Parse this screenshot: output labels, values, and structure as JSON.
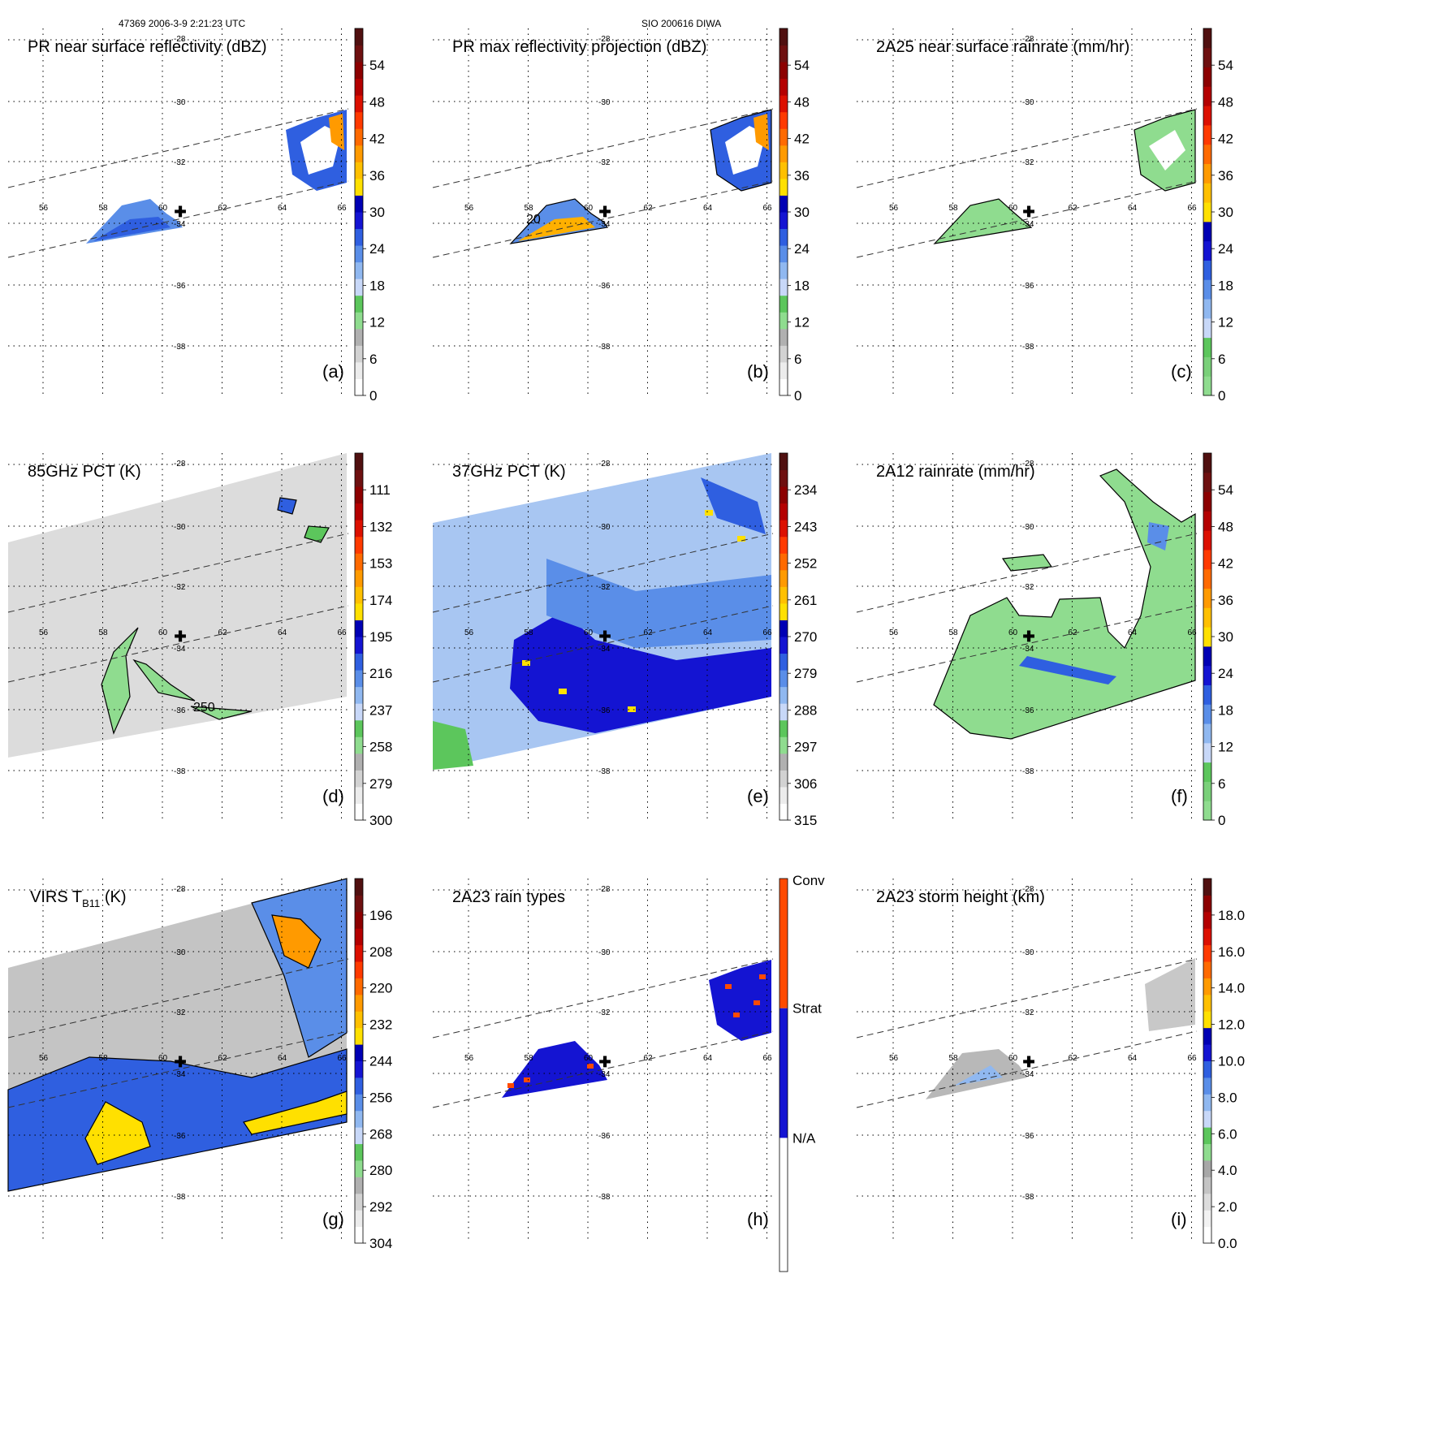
{
  "header": {
    "orbit_time": "47369 2006-3-9 2:21:23 UTC",
    "storm": "SIO 200616 DIWA"
  },
  "grid": {
    "lon_labels": [
      "56",
      "58",
      "60",
      "62",
      "64",
      "66"
    ],
    "lat_labels": [
      "-28",
      "-30",
      "-32",
      "-34",
      "-36",
      "-38"
    ]
  },
  "marker": "✚",
  "chart_data": [
    {
      "type": "heatmap",
      "panel": "(a)",
      "title": "PR near surface reflectivity (dBZ)",
      "colorbar": {
        "ticks": [
          "0",
          "6",
          "12",
          "18",
          "24",
          "30",
          "36",
          "42",
          "48",
          "54"
        ]
      },
      "contour_labels": []
    },
    {
      "type": "heatmap",
      "panel": "(b)",
      "title": "PR max reflectivity projection (dBZ)",
      "colorbar": {
        "ticks": [
          "0",
          "6",
          "12",
          "18",
          "24",
          "30",
          "36",
          "42",
          "48",
          "54"
        ]
      },
      "contour_labels": [
        "20"
      ]
    },
    {
      "type": "heatmap",
      "panel": "(c)",
      "title": "2A25 near surface rainrate (mm/hr)",
      "colorbar": {
        "ticks": [
          "0",
          "6",
          "12",
          "18",
          "24",
          "30",
          "36",
          "42",
          "48",
          "54"
        ]
      },
      "contour_labels": []
    },
    {
      "type": "heatmap",
      "panel": "(d)",
      "title": "85GHz PCT (K)",
      "colorbar": {
        "ticks": [
          "300",
          "279",
          "258",
          "237",
          "216",
          "195",
          "174",
          "153",
          "132",
          "111"
        ]
      },
      "contour_labels": [
        "250"
      ]
    },
    {
      "type": "heatmap",
      "panel": "(e)",
      "title": "37GHz PCT (K)",
      "colorbar": {
        "ticks": [
          "315",
          "306",
          "297",
          "288",
          "279",
          "270",
          "261",
          "252",
          "243",
          "234"
        ]
      },
      "contour_labels": []
    },
    {
      "type": "heatmap",
      "panel": "(f)",
      "title": "2A12 rainrate (mm/hr)",
      "colorbar": {
        "ticks": [
          "0",
          "6",
          "12",
          "18",
          "24",
          "30",
          "36",
          "42",
          "48",
          "54"
        ]
      },
      "contour_labels": []
    },
    {
      "type": "heatmap",
      "panel": "(g)",
      "title": "VIRS T",
      "title_sub": "B11",
      "title_tail": " (K)",
      "colorbar": {
        "ticks": [
          "304",
          "292",
          "280",
          "268",
          "256",
          "244",
          "232",
          "220",
          "208",
          "196"
        ]
      },
      "contour_labels": []
    },
    {
      "type": "heatmap",
      "panel": "(h)",
      "title": "2A23 rain types",
      "colorbar": {
        "categories": [
          "N/A",
          "Strat",
          "Conv"
        ]
      },
      "contour_labels": []
    },
    {
      "type": "heatmap",
      "panel": "(i)",
      "title": "2A23 storm height (km)",
      "colorbar": {
        "ticks": [
          "0.0",
          "2.0",
          "4.0",
          "6.0",
          "8.0",
          "10.0",
          "12.0",
          "14.0",
          "16.0",
          "18.0"
        ]
      },
      "contour_labels": []
    }
  ]
}
